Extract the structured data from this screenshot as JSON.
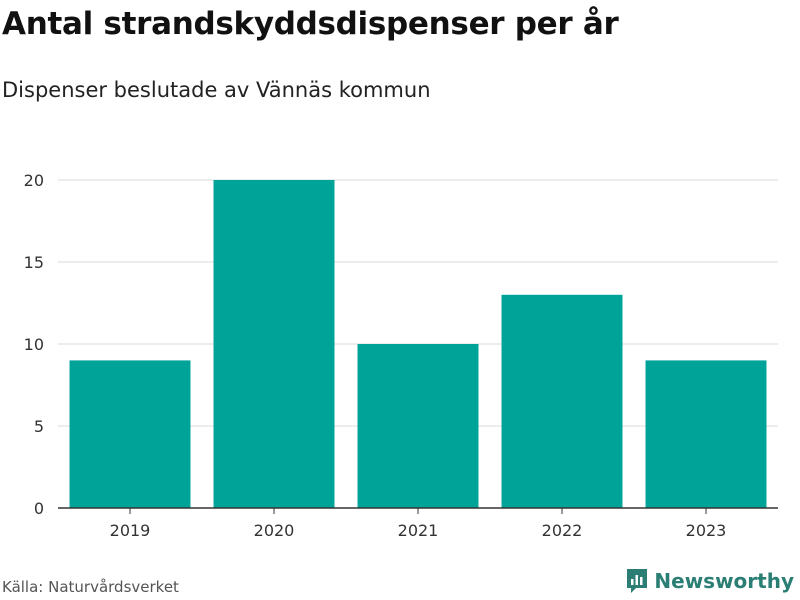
{
  "title": "Antal strandskyddsdispenser per år",
  "subtitle": "Dispenser beslutade av Vännäs kommun",
  "source": "Källa: Naturvårdsverket",
  "brand": "Newsworthy",
  "colors": {
    "bar": "#00a398",
    "grid": "#d9d9d9",
    "axis": "#333333",
    "brand": "#2a7e74"
  },
  "chart_data": {
    "type": "bar",
    "title": "Antal strandskyddsdispenser per år",
    "subtitle": "Dispenser beslutade av Vännäs kommun",
    "categories": [
      "2019",
      "2020",
      "2021",
      "2022",
      "2023"
    ],
    "values": [
      9,
      20,
      10,
      13,
      9
    ],
    "xlabel": "",
    "ylabel": "",
    "ylim": [
      0,
      20
    ],
    "yticks": [
      0,
      5,
      10,
      15,
      20
    ],
    "grid": true,
    "legend": "none"
  }
}
